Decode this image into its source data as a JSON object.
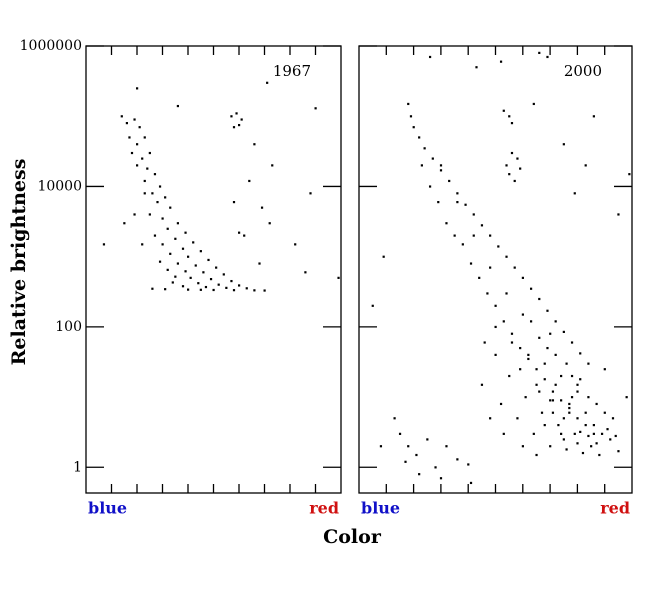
{
  "chart_data": [
    {
      "type": "scatter",
      "annotation": "1967",
      "ylabel": "Relative brightness",
      "xlabel_left": "blue",
      "xlabel_right": "red",
      "color": "#000000",
      "log_y": true,
      "xlim": [
        0,
        10
      ],
      "xticks": [
        1,
        2,
        3,
        4,
        5,
        6,
        7,
        8,
        9
      ],
      "ylim": [
        0.43,
        1000000
      ],
      "yticks": [
        1,
        100,
        10000,
        1000000
      ],
      "x": [
        1.4,
        1.6,
        1.9,
        2.1,
        1.7,
        2.0,
        2.3,
        1.8,
        2.2,
        2.5,
        2.0,
        2.4,
        2.7,
        2.3,
        2.9,
        2.6,
        3.1,
        2.8,
        3.3,
        2.5,
        3.0,
        3.6,
        3.2,
        3.9,
        2.7,
        3.5,
        4.2,
        3.0,
        3.8,
        4.5,
        3.3,
        4.0,
        4.8,
        2.9,
        3.6,
        4.3,
        5.1,
        3.2,
        3.9,
        4.6,
        5.4,
        3.5,
        4.1,
        4.9,
        5.7,
        3.4,
        4.4,
        5.2,
        6.0,
        3.8,
        4.7,
        5.5,
        6.3,
        2.6,
        3.1,
        4.0,
        4.5,
        5.0,
        5.8,
        6.6,
        7.0,
        2.2,
        1.9,
        2.3,
        1.5,
        6.2,
        6.8,
        7.2,
        5.8,
        6.4,
        6.9,
        8.2,
        8.6,
        6.0,
        5.7,
        5.9,
        6.1,
        5.8,
        6.0,
        3.6,
        7.1,
        9.0,
        7.3,
        6.6,
        0.7,
        9.9,
        8.8,
        2.0
      ],
      "y": [
        100000,
        80000,
        90000,
        70000,
        50000,
        40000,
        50000,
        30000,
        25000,
        30000,
        20000,
        18000,
        15000,
        12000,
        10000,
        8000,
        7000,
        6000,
        5000,
        4000,
        3500,
        3000,
        2500,
        2200,
        2000,
        1800,
        1600,
        1500,
        1300,
        1200,
        1100,
        1000,
        900,
        850,
        800,
        750,
        700,
        650,
        620,
        600,
        560,
        520,
        500,
        480,
        450,
        430,
        420,
        400,
        390,
        380,
        370,
        360,
        355,
        350,
        345,
        340,
        338,
        336,
        334,
        332,
        330,
        1500,
        4000,
        8000,
        3000,
        2000,
        800,
        3000,
        6000,
        12000,
        5000,
        1500,
        600,
        2200,
        100000,
        110000,
        90000,
        70000,
        75000,
        140000,
        300000,
        130000,
        20000,
        40000,
        1500,
        500,
        8000,
        250000
      ]
    },
    {
      "type": "scatter",
      "annotation": "2000",
      "xlabel": "Color",
      "xlabel_left": "blue",
      "xlabel_right": "red",
      "color": "#000000",
      "log_y": true,
      "xlim": [
        0,
        10
      ],
      "xticks": [
        1,
        2,
        3,
        4,
        5,
        6,
        7,
        8,
        9
      ],
      "ylim": [
        0.43,
        1000000
      ],
      "yticks": [
        1,
        100,
        10000,
        1000000
      ],
      "x": [
        1.8,
        1.9,
        2.0,
        2.2,
        2.4,
        2.7,
        3.0,
        3.3,
        3.6,
        3.9,
        4.2,
        4.5,
        4.8,
        5.1,
        5.4,
        5.7,
        6.0,
        6.3,
        6.6,
        6.9,
        7.2,
        7.5,
        7.8,
        8.1,
        8.4,
        2.3,
        2.6,
        2.9,
        3.2,
        3.5,
        3.8,
        4.1,
        4.4,
        4.7,
        5.0,
        5.3,
        5.6,
        5.9,
        6.2,
        6.5,
        6.8,
        7.1,
        7.4,
        7.7,
        8.0,
        8.3,
        8.6,
        3.0,
        3.6,
        4.2,
        4.8,
        5.4,
        6.0,
        6.6,
        7.2,
        7.8,
        8.4,
        9.0,
        4.6,
        5.0,
        5.5,
        6.1,
        6.7,
        7.3,
        7.9,
        8.5,
        9.2,
        5.2,
        5.8,
        6.4,
        7.0,
        7.6,
        8.2,
        8.8,
        9.5,
        4.5,
        4.8,
        5.3,
        6.0,
        6.5,
        7.5,
        8.0,
        8.7,
        9.3,
        9.8,
        7.0,
        7.6,
        9.0,
        6.3,
        6.9,
        8.1,
        1.5,
        1.8,
        2.1,
        2.5,
        1.7,
        2.8,
        3.2,
        3.6,
        1.3,
        2.2,
        3.0,
        4.0,
        0.8,
        0.5,
        0.9,
        4.1,
        5.6,
        5.8,
        5.5,
        5.7,
        5.9,
        5.4,
        5.5,
        5.6,
        5.3,
        6.4,
        6.9,
        6.6,
        5.2,
        7.5,
        8.3,
        9.5,
        9.9,
        7.9,
        8.6,
        4.3,
        2.6,
        6.8,
        7.1,
        7.4,
        7.7,
        8.0,
        8.3,
        8.6,
        8.9,
        7.2,
        7.8,
        8.4,
        9.1,
        6.6,
        7.0,
        7.5,
        8.1,
        8.7,
        9.4,
        5.0,
        5.6,
        6.2,
        6.8,
        7.4,
        8.0,
        5.9,
        6.5,
        7.1,
        7.7
      ],
      "y": [
        150000,
        100000,
        70000,
        50000,
        35000,
        25000,
        17000,
        12000,
        8000,
        5500,
        4000,
        2800,
        2000,
        1400,
        1000,
        700,
        500,
        350,
        250,
        170,
        120,
        85,
        60,
        42,
        30,
        20000,
        10000,
        6000,
        3000,
        2000,
        1500,
        800,
        500,
        300,
        200,
        120,
        80,
        50,
        35,
        25,
        18,
        12,
        9,
        7,
        5,
        4,
        3,
        20000,
        6000,
        2000,
        700,
        300,
        150,
        70,
        40,
        20,
        10,
        6,
        60,
        40,
        20,
        10,
        6,
        4,
        3,
        2,
        2.5,
        8,
        5,
        3,
        2,
        1.8,
        1.6,
        1.5,
        1.7,
        15,
        5,
        3,
        2,
        1.5,
        2.5,
        12,
        8,
        5,
        10,
        80,
        30,
        25,
        120,
        50,
        18,
        3,
        2,
        1.5,
        2.5,
        1.2,
        1,
        2,
        1.3,
        5,
        0.8,
        0.7,
        1.1,
        2,
        200,
        1000,
        0.6,
        30000,
        25000,
        15000,
        12000,
        18000,
        20000,
        100000,
        80000,
        120000,
        150000,
        700000,
        800000,
        600000,
        40000,
        20000,
        4000,
        15000,
        8000,
        100000,
        500000,
        700000,
        4,
        6,
        3,
        8,
        2.2,
        6,
        4,
        3,
        15,
        10,
        2.8,
        3.5,
        12,
        9,
        5,
        3.2,
        2.2,
        2.8,
        100,
        60,
        40,
        30,
        20,
        15,
        25,
        15,
        9,
        6
      ]
    }
  ]
}
